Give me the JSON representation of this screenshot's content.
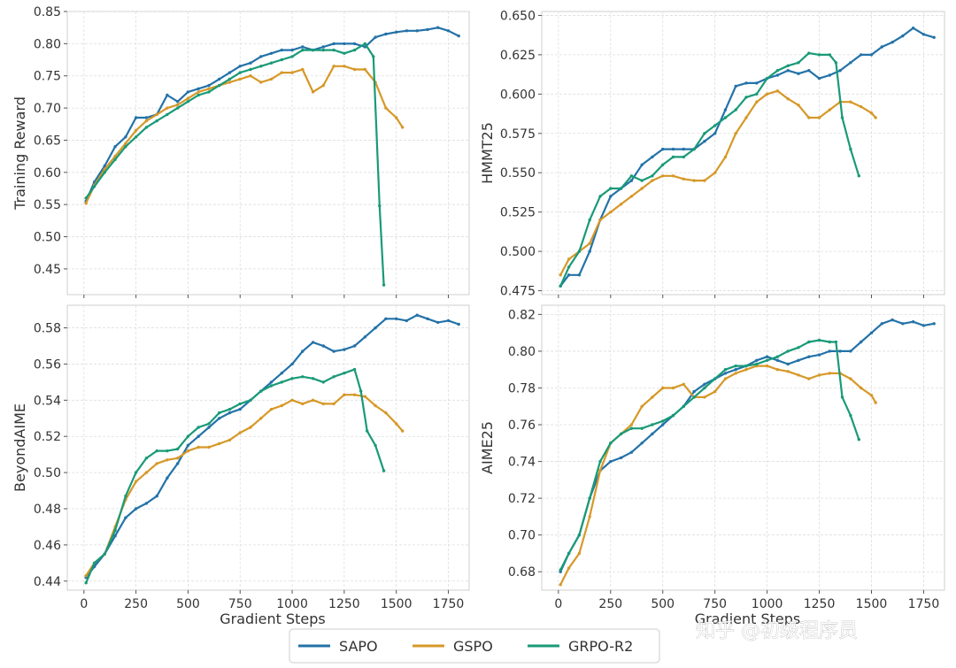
{
  "legend": {
    "entries": [
      {
        "name": "SAPO",
        "color": "#2372a8"
      },
      {
        "name": "GSPO",
        "color": "#d69828"
      },
      {
        "name": "GRPO-R2",
        "color": "#199a77"
      }
    ]
  },
  "watermark": {
    "text": "知乎 @初级程序员"
  },
  "chart_data": [
    {
      "type": "line",
      "ylabel": "Training Reward",
      "xlabel": "",
      "xlim": [
        -80,
        1850
      ],
      "ylim": [
        0.41,
        0.85
      ],
      "xticks": [
        0,
        250,
        500,
        750,
        1000,
        1250,
        1500,
        1750
      ],
      "yticks": [
        0.45,
        0.5,
        0.55,
        0.6,
        0.65,
        0.7,
        0.75,
        0.8,
        0.85
      ],
      "yticklabels": [
        "0.45",
        "0.50",
        "0.55",
        "0.60",
        "0.65",
        "0.70",
        "0.75",
        "0.80",
        "0.85"
      ],
      "show_xticklabels": false,
      "grid": true,
      "series": [
        {
          "name": "SAPO",
          "color": "#2372a8",
          "x": [
            10,
            50,
            100,
            150,
            200,
            250,
            300,
            350,
            400,
            450,
            500,
            550,
            600,
            650,
            700,
            750,
            800,
            850,
            900,
            950,
            1000,
            1050,
            1100,
            1150,
            1200,
            1250,
            1300,
            1350,
            1400,
            1450,
            1500,
            1550,
            1600,
            1650,
            1700,
            1750,
            1800
          ],
          "y": [
            0.555,
            0.585,
            0.61,
            0.64,
            0.655,
            0.685,
            0.685,
            0.69,
            0.72,
            0.71,
            0.725,
            0.73,
            0.735,
            0.745,
            0.755,
            0.765,
            0.77,
            0.78,
            0.785,
            0.79,
            0.79,
            0.795,
            0.79,
            0.795,
            0.8,
            0.8,
            0.8,
            0.795,
            0.81,
            0.815,
            0.818,
            0.82,
            0.82,
            0.822,
            0.825,
            0.82,
            0.812
          ]
        },
        {
          "name": "GSPO",
          "color": "#d69828",
          "x": [
            10,
            50,
            100,
            150,
            200,
            250,
            300,
            350,
            400,
            450,
            500,
            550,
            600,
            650,
            700,
            750,
            800,
            850,
            900,
            950,
            1000,
            1050,
            1100,
            1150,
            1200,
            1250,
            1300,
            1350,
            1400,
            1450,
            1500,
            1530
          ],
          "y": [
            0.552,
            0.58,
            0.605,
            0.625,
            0.645,
            0.665,
            0.68,
            0.69,
            0.7,
            0.705,
            0.715,
            0.725,
            0.73,
            0.735,
            0.74,
            0.745,
            0.75,
            0.74,
            0.745,
            0.755,
            0.755,
            0.76,
            0.725,
            0.735,
            0.765,
            0.765,
            0.76,
            0.76,
            0.74,
            0.7,
            0.685,
            0.67
          ]
        },
        {
          "name": "GRPO-R2",
          "color": "#199a77",
          "x": [
            10,
            50,
            100,
            150,
            200,
            250,
            300,
            350,
            400,
            450,
            500,
            550,
            600,
            650,
            700,
            750,
            800,
            850,
            900,
            950,
            1000,
            1050,
            1100,
            1150,
            1200,
            1250,
            1300,
            1350,
            1390,
            1420,
            1440
          ],
          "y": [
            0.56,
            0.578,
            0.6,
            0.62,
            0.64,
            0.655,
            0.67,
            0.68,
            0.69,
            0.7,
            0.71,
            0.72,
            0.725,
            0.735,
            0.745,
            0.755,
            0.76,
            0.765,
            0.77,
            0.775,
            0.78,
            0.79,
            0.79,
            0.79,
            0.79,
            0.785,
            0.79,
            0.8,
            0.78,
            0.548,
            0.425
          ]
        }
      ]
    },
    {
      "type": "line",
      "ylabel": "HMMT25",
      "xlabel": "",
      "xlim": [
        -80,
        1850
      ],
      "ylim": [
        0.4725,
        0.6525
      ],
      "xticks": [
        0,
        250,
        500,
        750,
        1000,
        1250,
        1500,
        1750
      ],
      "yticks": [
        0.475,
        0.5,
        0.525,
        0.55,
        0.575,
        0.6,
        0.625,
        0.65
      ],
      "yticklabels": [
        "0.475",
        "0.500",
        "0.525",
        "0.550",
        "0.575",
        "0.600",
        "0.625",
        "0.650"
      ],
      "show_xticklabels": false,
      "grid": true,
      "series": [
        {
          "name": "SAPO",
          "color": "#2372a8",
          "x": [
            10,
            50,
            100,
            150,
            200,
            250,
            300,
            350,
            400,
            450,
            500,
            550,
            600,
            650,
            700,
            750,
            800,
            850,
            900,
            950,
            1000,
            1050,
            1100,
            1150,
            1200,
            1250,
            1300,
            1350,
            1400,
            1450,
            1500,
            1550,
            1600,
            1650,
            1700,
            1750,
            1800
          ],
          "y": [
            0.478,
            0.485,
            0.485,
            0.5,
            0.52,
            0.535,
            0.54,
            0.545,
            0.555,
            0.56,
            0.565,
            0.565,
            0.565,
            0.565,
            0.57,
            0.575,
            0.59,
            0.605,
            0.607,
            0.607,
            0.61,
            0.612,
            0.615,
            0.613,
            0.615,
            0.61,
            0.612,
            0.615,
            0.62,
            0.625,
            0.625,
            0.63,
            0.633,
            0.637,
            0.642,
            0.638,
            0.636
          ]
        },
        {
          "name": "GSPO",
          "color": "#d69828",
          "x": [
            10,
            50,
            100,
            150,
            200,
            250,
            300,
            350,
            400,
            450,
            500,
            550,
            600,
            650,
            700,
            750,
            800,
            850,
            900,
            950,
            1000,
            1050,
            1100,
            1150,
            1200,
            1250,
            1300,
            1350,
            1400,
            1450,
            1500,
            1520
          ],
          "y": [
            0.485,
            0.495,
            0.5,
            0.505,
            0.52,
            0.525,
            0.53,
            0.535,
            0.54,
            0.545,
            0.548,
            0.548,
            0.546,
            0.545,
            0.545,
            0.55,
            0.56,
            0.575,
            0.585,
            0.595,
            0.6,
            0.602,
            0.597,
            0.593,
            0.585,
            0.585,
            0.59,
            0.595,
            0.595,
            0.592,
            0.588,
            0.585
          ]
        },
        {
          "name": "GRPO-R2",
          "color": "#199a77",
          "x": [
            10,
            50,
            100,
            150,
            200,
            250,
            300,
            350,
            400,
            450,
            500,
            550,
            600,
            650,
            700,
            750,
            800,
            850,
            900,
            950,
            1000,
            1050,
            1100,
            1150,
            1200,
            1250,
            1300,
            1330,
            1360,
            1400,
            1440
          ],
          "y": [
            0.478,
            0.49,
            0.5,
            0.52,
            0.535,
            0.54,
            0.54,
            0.548,
            0.545,
            0.548,
            0.555,
            0.56,
            0.56,
            0.565,
            0.575,
            0.58,
            0.585,
            0.59,
            0.598,
            0.6,
            0.61,
            0.615,
            0.618,
            0.62,
            0.626,
            0.625,
            0.625,
            0.62,
            0.585,
            0.565,
            0.548
          ]
        }
      ]
    },
    {
      "type": "line",
      "ylabel": "BeyondAIME",
      "xlabel": "Gradient Steps",
      "xlim": [
        -80,
        1850
      ],
      "ylim": [
        0.435,
        0.5925
      ],
      "xticks": [
        0,
        250,
        500,
        750,
        1000,
        1250,
        1500,
        1750
      ],
      "xticklabels": [
        "0",
        "250",
        "500",
        "750",
        "1000",
        "1250",
        "1500",
        "1750"
      ],
      "yticks": [
        0.44,
        0.46,
        0.48,
        0.5,
        0.52,
        0.54,
        0.56,
        0.58
      ],
      "yticklabels": [
        "0.44",
        "0.46",
        "0.48",
        "0.50",
        "0.52",
        "0.54",
        "0.56",
        "0.58"
      ],
      "show_xticklabels": true,
      "grid": true,
      "series": [
        {
          "name": "SAPO",
          "color": "#2372a8",
          "x": [
            10,
            50,
            100,
            150,
            200,
            250,
            300,
            350,
            400,
            450,
            500,
            550,
            600,
            650,
            700,
            750,
            800,
            850,
            900,
            950,
            1000,
            1050,
            1100,
            1150,
            1200,
            1250,
            1300,
            1350,
            1400,
            1450,
            1500,
            1550,
            1600,
            1650,
            1700,
            1750,
            1800
          ],
          "y": [
            0.442,
            0.448,
            0.455,
            0.465,
            0.475,
            0.48,
            0.483,
            0.487,
            0.497,
            0.505,
            0.515,
            0.52,
            0.525,
            0.53,
            0.533,
            0.535,
            0.54,
            0.545,
            0.55,
            0.555,
            0.56,
            0.567,
            0.572,
            0.57,
            0.567,
            0.568,
            0.57,
            0.575,
            0.58,
            0.585,
            0.585,
            0.584,
            0.587,
            0.585,
            0.583,
            0.584,
            0.582
          ]
        },
        {
          "name": "GSPO",
          "color": "#d69828",
          "x": [
            10,
            50,
            100,
            150,
            200,
            250,
            300,
            350,
            400,
            450,
            500,
            550,
            600,
            650,
            700,
            750,
            800,
            850,
            900,
            950,
            1000,
            1050,
            1100,
            1150,
            1200,
            1250,
            1300,
            1350,
            1400,
            1450,
            1500,
            1530
          ],
          "y": [
            0.443,
            0.45,
            0.455,
            0.47,
            0.485,
            0.495,
            0.5,
            0.505,
            0.507,
            0.508,
            0.512,
            0.514,
            0.514,
            0.516,
            0.518,
            0.522,
            0.525,
            0.53,
            0.535,
            0.537,
            0.54,
            0.538,
            0.54,
            0.538,
            0.538,
            0.543,
            0.543,
            0.542,
            0.537,
            0.533,
            0.527,
            0.523
          ]
        },
        {
          "name": "GRPO-R2",
          "color": "#199a77",
          "x": [
            10,
            50,
            100,
            150,
            200,
            250,
            300,
            350,
            400,
            450,
            500,
            550,
            600,
            650,
            700,
            750,
            800,
            850,
            900,
            950,
            1000,
            1050,
            1100,
            1150,
            1200,
            1250,
            1300,
            1330,
            1360,
            1400,
            1440
          ],
          "y": [
            0.439,
            0.45,
            0.455,
            0.468,
            0.487,
            0.5,
            0.508,
            0.512,
            0.512,
            0.513,
            0.52,
            0.525,
            0.527,
            0.533,
            0.535,
            0.538,
            0.54,
            0.545,
            0.548,
            0.55,
            0.552,
            0.553,
            0.552,
            0.55,
            0.553,
            0.555,
            0.557,
            0.545,
            0.523,
            0.515,
            0.501
          ]
        }
      ]
    },
    {
      "type": "line",
      "ylabel": "AIME25",
      "xlabel": "Gradient Steps",
      "xlim": [
        -80,
        1850
      ],
      "ylim": [
        0.67,
        0.825
      ],
      "xticks": [
        0,
        250,
        500,
        750,
        1000,
        1250,
        1500,
        1750
      ],
      "xticklabels": [
        "0",
        "250",
        "500",
        "750",
        "1000",
        "1250",
        "1500",
        "1750"
      ],
      "yticks": [
        0.68,
        0.7,
        0.72,
        0.74,
        0.76,
        0.78,
        0.8,
        0.82
      ],
      "yticklabels": [
        "0.68",
        "0.70",
        "0.72",
        "0.74",
        "0.76",
        "0.78",
        "0.80",
        "0.82"
      ],
      "show_xticklabels": true,
      "grid": true,
      "series": [
        {
          "name": "SAPO",
          "color": "#2372a8",
          "x": [
            10,
            50,
            100,
            150,
            200,
            250,
            300,
            350,
            400,
            450,
            500,
            550,
            600,
            650,
            700,
            750,
            800,
            850,
            900,
            950,
            1000,
            1050,
            1100,
            1150,
            1200,
            1250,
            1300,
            1350,
            1400,
            1450,
            1500,
            1550,
            1600,
            1650,
            1700,
            1750,
            1800
          ],
          "y": [
            0.68,
            0.69,
            0.7,
            0.72,
            0.735,
            0.74,
            0.742,
            0.745,
            0.75,
            0.755,
            0.76,
            0.765,
            0.77,
            0.778,
            0.782,
            0.785,
            0.788,
            0.79,
            0.792,
            0.795,
            0.797,
            0.795,
            0.793,
            0.795,
            0.797,
            0.798,
            0.8,
            0.8,
            0.8,
            0.805,
            0.81,
            0.815,
            0.817,
            0.815,
            0.816,
            0.814,
            0.815
          ]
        },
        {
          "name": "GSPO",
          "color": "#d69828",
          "x": [
            10,
            50,
            100,
            150,
            200,
            250,
            300,
            350,
            400,
            450,
            500,
            550,
            600,
            650,
            700,
            750,
            800,
            850,
            900,
            950,
            1000,
            1050,
            1100,
            1150,
            1200,
            1250,
            1300,
            1350,
            1400,
            1450,
            1500,
            1520
          ],
          "y": [
            0.673,
            0.682,
            0.69,
            0.71,
            0.735,
            0.75,
            0.755,
            0.76,
            0.77,
            0.775,
            0.78,
            0.78,
            0.782,
            0.775,
            0.775,
            0.778,
            0.785,
            0.788,
            0.79,
            0.792,
            0.792,
            0.79,
            0.789,
            0.787,
            0.785,
            0.787,
            0.788,
            0.788,
            0.785,
            0.78,
            0.776,
            0.772
          ]
        },
        {
          "name": "GRPO-R2",
          "color": "#199a77",
          "x": [
            10,
            50,
            100,
            150,
            200,
            250,
            300,
            350,
            400,
            450,
            500,
            550,
            600,
            650,
            700,
            750,
            800,
            850,
            900,
            950,
            1000,
            1050,
            1100,
            1150,
            1200,
            1250,
            1300,
            1330,
            1360,
            1400,
            1440
          ],
          "y": [
            0.681,
            0.69,
            0.7,
            0.72,
            0.74,
            0.75,
            0.755,
            0.758,
            0.758,
            0.76,
            0.762,
            0.765,
            0.77,
            0.775,
            0.78,
            0.785,
            0.79,
            0.792,
            0.792,
            0.793,
            0.795,
            0.797,
            0.8,
            0.802,
            0.805,
            0.806,
            0.805,
            0.805,
            0.775,
            0.765,
            0.752
          ]
        }
      ]
    }
  ]
}
